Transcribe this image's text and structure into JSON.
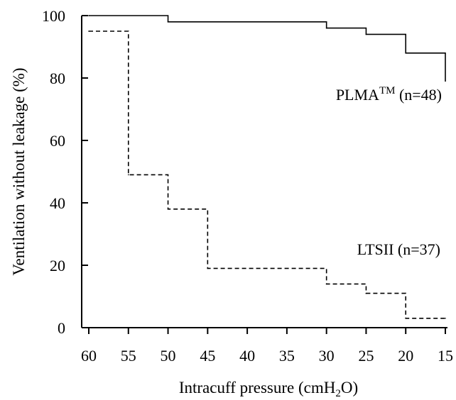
{
  "chart_data": {
    "type": "line",
    "step": true,
    "xlabel": {
      "main": "Intracuff pressure (cmH",
      "sub": "2",
      "tail": "O)"
    },
    "ylabel": "Ventilation without leakage (%)",
    "xlim": [
      60,
      15
    ],
    "ylim": [
      0,
      100
    ],
    "x_reversed": true,
    "xticks": [
      "60",
      "55",
      "50",
      "45",
      "40",
      "35",
      "30",
      "25",
      "20",
      "15"
    ],
    "yticks": [
      "0",
      "20",
      "40",
      "60",
      "80",
      "100"
    ],
    "grid": false,
    "legend": "none",
    "series": [
      {
        "label": {
          "main": "PLMA",
          "sup": "TM",
          "tail": " (n=48)"
        },
        "style": "solid",
        "x": [
          60,
          50,
          30,
          25,
          20,
          15
        ],
        "y": [
          100,
          98,
          96,
          94,
          88,
          79
        ]
      },
      {
        "label": {
          "main": "LTSII (n=37)"
        },
        "style": "dashed",
        "x": [
          60,
          55,
          50,
          45,
          30,
          25,
          20,
          15
        ],
        "y": [
          95,
          49,
          38,
          19,
          14,
          11,
          3,
          3
        ]
      }
    ]
  }
}
